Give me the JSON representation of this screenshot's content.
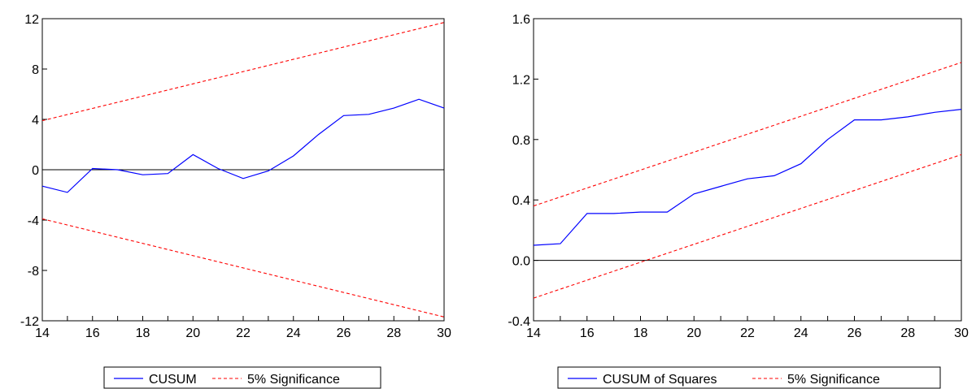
{
  "colors": {
    "series": "#0000ff",
    "bounds": "#ff0000",
    "zero_line": "#000000",
    "frame": "#000000"
  },
  "chart_data": [
    {
      "type": "line",
      "title": "",
      "xlabel": "",
      "ylabel": "",
      "xlim": [
        14,
        30
      ],
      "ylim": [
        -12,
        12
      ],
      "x_ticks": [
        "14",
        "16",
        "18",
        "20",
        "22",
        "24",
        "26",
        "28",
        "30"
      ],
      "y_ticks": [
        "12",
        "8",
        "4",
        "0",
        "-4",
        "-8",
        "-12"
      ],
      "grid": false,
      "zero_line": true,
      "legend_position": "bottom-center",
      "series": [
        {
          "name": "CUSUM",
          "style": "solid",
          "x": [
            14,
            15,
            16,
            17,
            18,
            19,
            20,
            21,
            22,
            23,
            24,
            25,
            26,
            27,
            28,
            29,
            30
          ],
          "y": [
            -1.3,
            -1.8,
            0.1,
            0.0,
            -0.4,
            -0.3,
            1.2,
            0.1,
            -0.7,
            -0.1,
            1.1,
            2.8,
            4.3,
            4.4,
            4.9,
            5.6,
            4.9
          ]
        },
        {
          "name": "5% Significance",
          "style": "dashed",
          "x": [
            14,
            30
          ],
          "y": [
            3.9,
            11.7
          ]
        },
        {
          "name": "",
          "style": "dashed",
          "x": [
            14,
            30
          ],
          "y": [
            -3.9,
            -11.7
          ]
        }
      ]
    },
    {
      "type": "line",
      "title": "",
      "xlabel": "",
      "ylabel": "",
      "xlim": [
        14,
        30
      ],
      "ylim": [
        -0.4,
        1.6
      ],
      "x_ticks": [
        "14",
        "16",
        "18",
        "20",
        "22",
        "24",
        "26",
        "28",
        "30"
      ],
      "y_ticks": [
        "1.6",
        "1.2",
        "0.8",
        "0.4",
        "0.0",
        "-0.4"
      ],
      "grid": false,
      "zero_line": true,
      "legend_position": "bottom-center",
      "series": [
        {
          "name": "CUSUM of Squares",
          "style": "solid",
          "x": [
            14,
            15,
            16,
            17,
            18,
            19,
            20,
            21,
            22,
            23,
            24,
            25,
            26,
            27,
            28,
            29,
            30
          ],
          "y": [
            0.1,
            0.11,
            0.31,
            0.31,
            0.32,
            0.32,
            0.44,
            0.49,
            0.54,
            0.56,
            0.64,
            0.8,
            0.93,
            0.93,
            0.95,
            0.98,
            1.0
          ]
        },
        {
          "name": "5% Significance",
          "style": "dashed",
          "x": [
            14,
            30
          ],
          "y": [
            0.36,
            1.31
          ]
        },
        {
          "name": "",
          "style": "dashed",
          "x": [
            14,
            30
          ],
          "y": [
            -0.25,
            0.7
          ]
        }
      ]
    }
  ]
}
